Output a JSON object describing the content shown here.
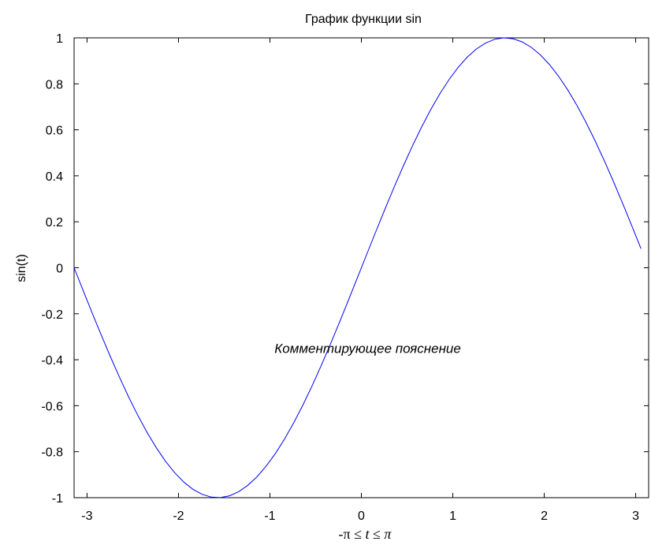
{
  "chart_data": {
    "type": "line",
    "title": "График функции sin",
    "xlabel": {
      "pre": "-π",
      "le1": " ≤ ",
      "var": "t",
      "le2": " ≤ ",
      "post": "π"
    },
    "ylabel": "sin(t)",
    "annotation": {
      "text": "Комментирующее пояснение",
      "x": -0.95,
      "y": -0.35
    },
    "xlim": [
      -3.1416,
      3.1416
    ],
    "ylim": [
      -1,
      1
    ],
    "xticks": [
      -3,
      -2,
      -1,
      0,
      1,
      2,
      3
    ],
    "xtick_labels": [
      "-3",
      "-2",
      "-1",
      "0",
      "1",
      "2",
      "3"
    ],
    "yticks": [
      -1,
      -0.8,
      -0.6,
      -0.4,
      -0.2,
      0,
      0.2,
      0.4,
      0.6,
      0.8,
      1
    ],
    "ytick_labels": [
      "-1",
      "-0.8",
      "-0.6",
      "-0.4",
      "-0.2",
      "0",
      "0.2",
      "0.4",
      "0.6",
      "0.8",
      "1"
    ],
    "grid": false,
    "series": [
      {
        "color": "#0000ff",
        "x": [
          -3.1416,
          -3.0416,
          -2.9416,
          -2.8416,
          -2.7416,
          -2.6416,
          -2.5416,
          -2.4416,
          -2.3416,
          -2.2416,
          -2.1416,
          -2.0416,
          -1.9416,
          -1.8416,
          -1.7416,
          -1.6416,
          -1.5416,
          -1.4416,
          -1.3416,
          -1.2416,
          -1.1416,
          -1.0416,
          -0.9416,
          -0.8416,
          -0.7416,
          -0.6416,
          -0.5416,
          -0.4416,
          -0.3416,
          -0.2416,
          -0.1416,
          -0.0416,
          0.0584,
          0.1584,
          0.2584,
          0.3584,
          0.4584,
          0.5584,
          0.6584,
          0.7584,
          0.8584,
          0.9584,
          1.0584,
          1.1584,
          1.2584,
          1.3584,
          1.4584,
          1.5584,
          1.6584,
          1.7584,
          1.8584,
          1.9584,
          2.0584,
          2.1584,
          2.2584,
          2.3584,
          2.4584,
          2.5584,
          2.6584,
          2.7584,
          2.8584,
          2.9584,
          3.0584
        ],
        "y": [
          0,
          -0.0998,
          -0.1987,
          -0.2955,
          -0.3894,
          -0.4794,
          -0.5646,
          -0.6442,
          -0.7174,
          -0.7833,
          -0.8415,
          -0.8912,
          -0.932,
          -0.9636,
          -0.9854,
          -0.9975,
          -0.9996,
          -0.9917,
          -0.9738,
          -0.9463,
          -0.9093,
          -0.8632,
          -0.8085,
          -0.7457,
          -0.6755,
          -0.5985,
          -0.5155,
          -0.4274,
          -0.335,
          -0.2392,
          -0.1411,
          -0.0416,
          0.0584,
          0.1577,
          0.2555,
          0.3508,
          0.4425,
          0.5298,
          0.6119,
          0.6878,
          0.7568,
          0.8183,
          0.8716,
          0.9162,
          0.9516,
          0.9775,
          0.9937,
          0.9999,
          0.9962,
          0.9825,
          0.9589,
          0.9258,
          0.8835,
          0.8323,
          0.7728,
          0.7055,
          0.6312,
          0.5507,
          0.4646,
          0.3739,
          0.2794,
          0.1822,
          0.0831
        ]
      }
    ]
  }
}
